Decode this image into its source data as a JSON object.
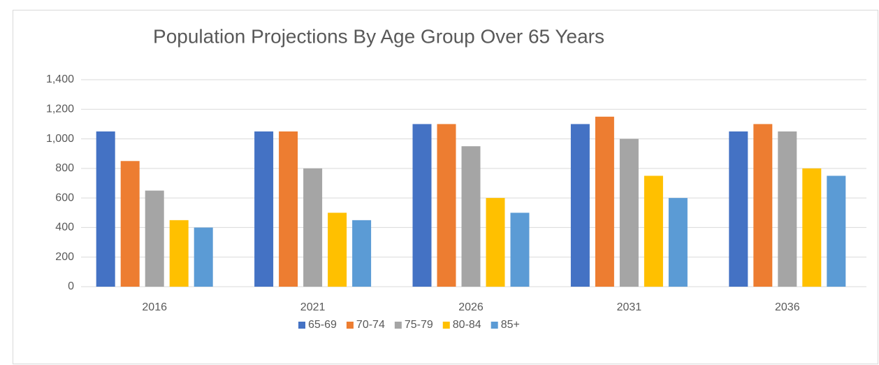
{
  "chart_data": {
    "type": "bar",
    "title": "Population Projections By Age Group Over 65 Years",
    "categories": [
      "2016",
      "2021",
      "2026",
      "2031",
      "2036"
    ],
    "series": [
      {
        "name": "65-69",
        "color": "#4472c4",
        "values": [
          1050,
          1050,
          1100,
          1100,
          1050
        ]
      },
      {
        "name": "70-74",
        "color": "#ed7d31",
        "values": [
          850,
          1050,
          1100,
          1150,
          1100
        ]
      },
      {
        "name": "75-79",
        "color": "#a5a5a5",
        "values": [
          650,
          800,
          950,
          1000,
          1050
        ]
      },
      {
        "name": "80-84",
        "color": "#ffc000",
        "values": [
          450,
          500,
          600,
          750,
          800
        ]
      },
      {
        "name": "85+",
        "color": "#5b9bd5",
        "values": [
          400,
          450,
          500,
          600,
          750
        ]
      }
    ],
    "ylim": [
      0,
      1400
    ],
    "yticks": [
      0,
      200,
      400,
      600,
      800,
      {
        "value": 1000,
        "label": "1,000"
      },
      {
        "value": 1200,
        "label": "1,200"
      },
      {
        "value": 1400,
        "label": "1,400"
      }
    ],
    "grid": true,
    "legend": "bottom"
  }
}
